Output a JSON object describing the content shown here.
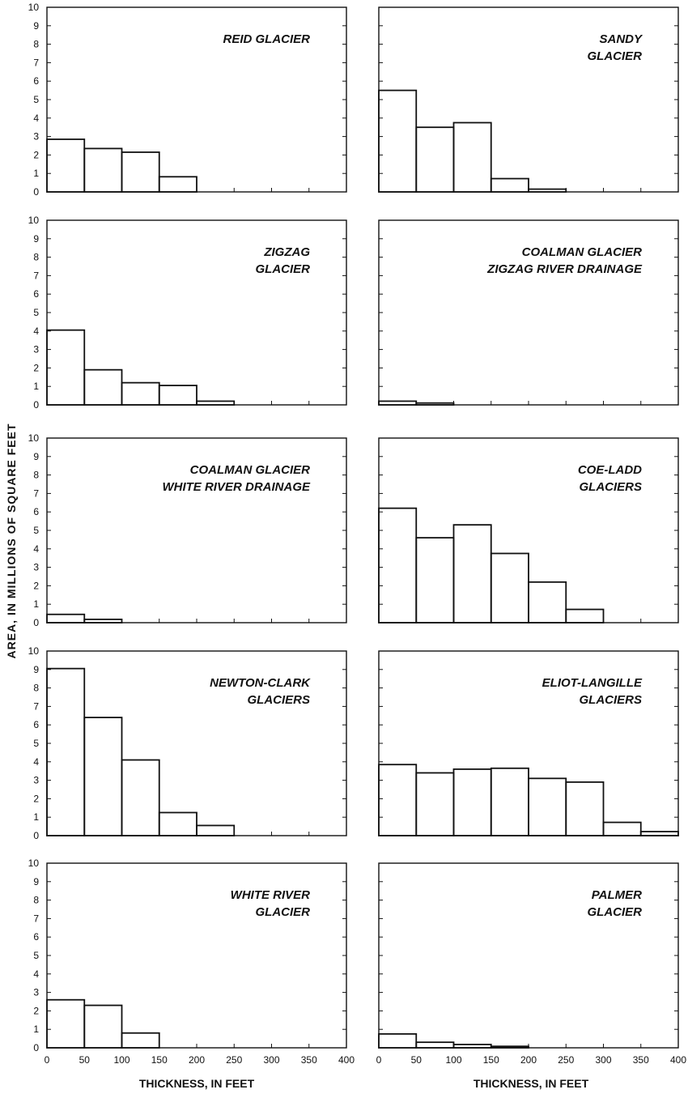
{
  "figure": {
    "ylabel": "AREA, IN MILLIONS OF SQUARE FEET",
    "xlabel_left": "THICKNESS, IN FEET",
    "xlabel_right": "THICKNESS, IN FEET"
  },
  "chart_data": [
    {
      "type": "bar",
      "title_lines": [
        "REID GLACIER"
      ],
      "x_bin_edges": [
        0,
        50,
        100,
        150,
        200
      ],
      "values": [
        2.85,
        2.35,
        2.15,
        0.82
      ],
      "ylim": [
        0,
        10
      ],
      "xlim": [
        0,
        400
      ],
      "y_ticks": [
        "0",
        "1",
        "2",
        "3",
        "4",
        "5",
        "6",
        "7",
        "8",
        "9",
        "10"
      ],
      "x_ticks": []
    },
    {
      "type": "bar",
      "title_lines": [
        "SANDY",
        "GLACIER"
      ],
      "x_bin_edges": [
        0,
        50,
        100,
        150,
        200,
        250
      ],
      "values": [
        5.5,
        3.5,
        3.75,
        0.72,
        0.15
      ],
      "ylim": [
        0,
        10
      ],
      "xlim": [
        0,
        400
      ],
      "y_ticks": [],
      "x_ticks": []
    },
    {
      "type": "bar",
      "title_lines": [
        "ZIGZAG",
        "GLACIER"
      ],
      "x_bin_edges": [
        0,
        50,
        100,
        150,
        200,
        250
      ],
      "values": [
        4.05,
        1.9,
        1.2,
        1.05,
        0.2
      ],
      "ylim": [
        0,
        10
      ],
      "xlim": [
        0,
        400
      ],
      "y_ticks": [
        "0",
        "1",
        "2",
        "3",
        "4",
        "5",
        "6",
        "7",
        "8",
        "9",
        "10"
      ],
      "x_ticks": []
    },
    {
      "type": "bar",
      "title_lines": [
        "COALMAN GLACIER",
        "ZIGZAG RIVER DRAINAGE"
      ],
      "x_bin_edges": [
        0,
        50,
        100
      ],
      "values": [
        0.2,
        0.1
      ],
      "ylim": [
        0,
        10
      ],
      "xlim": [
        0,
        400
      ],
      "y_ticks": [],
      "x_ticks": []
    },
    {
      "type": "bar",
      "title_lines": [
        "COALMAN GLACIER",
        "WHITE RIVER DRAINAGE"
      ],
      "x_bin_edges": [
        0,
        50,
        100
      ],
      "values": [
        0.45,
        0.18
      ],
      "ylim": [
        0,
        10
      ],
      "xlim": [
        0,
        400
      ],
      "y_ticks": [
        "0",
        "1",
        "2",
        "3",
        "4",
        "5",
        "6",
        "7",
        "8",
        "9",
        "10"
      ],
      "x_ticks": []
    },
    {
      "type": "bar",
      "title_lines": [
        "COE-LADD",
        "GLACIERS"
      ],
      "x_bin_edges": [
        0,
        50,
        100,
        150,
        200,
        250,
        300
      ],
      "values": [
        6.2,
        4.6,
        5.3,
        3.75,
        2.2,
        0.72
      ],
      "ylim": [
        0,
        10
      ],
      "xlim": [
        0,
        400
      ],
      "y_ticks": [],
      "x_ticks": []
    },
    {
      "type": "bar",
      "title_lines": [
        "NEWTON-CLARK",
        "GLACIERS"
      ],
      "x_bin_edges": [
        0,
        50,
        100,
        150,
        200,
        250
      ],
      "values": [
        9.05,
        6.4,
        4.1,
        1.25,
        0.55
      ],
      "ylim": [
        0,
        10
      ],
      "xlim": [
        0,
        400
      ],
      "y_ticks": [
        "0",
        "1",
        "2",
        "3",
        "4",
        "5",
        "6",
        "7",
        "8",
        "9",
        "10"
      ],
      "x_ticks": []
    },
    {
      "type": "bar",
      "title_lines": [
        "ELIOT-LANGILLE",
        "GLACIERS"
      ],
      "x_bin_edges": [
        0,
        50,
        100,
        150,
        200,
        250,
        300,
        350,
        400
      ],
      "values": [
        3.85,
        3.4,
        3.6,
        3.65,
        3.1,
        2.9,
        0.72,
        0.22
      ],
      "ylim": [
        0,
        10
      ],
      "xlim": [
        0,
        400
      ],
      "y_ticks": [],
      "x_ticks": []
    },
    {
      "type": "bar",
      "title_lines": [
        "WHITE RIVER",
        "GLACIER"
      ],
      "x_bin_edges": [
        0,
        50,
        100,
        150
      ],
      "values": [
        2.6,
        2.3,
        0.8
      ],
      "ylim": [
        0,
        10
      ],
      "xlim": [
        0,
        400
      ],
      "y_ticks": [
        "0",
        "1",
        "2",
        "3",
        "4",
        "5",
        "6",
        "7",
        "8",
        "9",
        "10"
      ],
      "x_ticks": [
        "0",
        "50",
        "100",
        "150",
        "200",
        "250",
        "300",
        "350",
        "400"
      ]
    },
    {
      "type": "bar",
      "title_lines": [
        "PALMER",
        "GLACIER"
      ],
      "x_bin_edges": [
        0,
        50,
        100,
        150,
        200
      ],
      "values": [
        0.75,
        0.3,
        0.18,
        0.08
      ],
      "ylim": [
        0,
        10
      ],
      "xlim": [
        0,
        400
      ],
      "y_ticks": [],
      "x_ticks": [
        "0",
        "50",
        "100",
        "150",
        "200",
        "250",
        "300",
        "350",
        "400"
      ]
    }
  ]
}
